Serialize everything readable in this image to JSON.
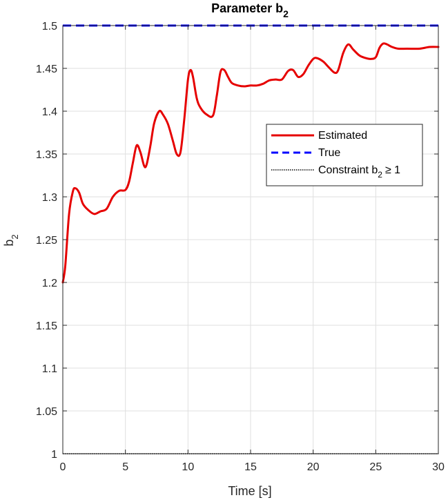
{
  "chart_data": {
    "type": "line",
    "title": "Parameter b",
    "title_subscript": "2",
    "xlabel": "Time [s]",
    "ylabel": "b",
    "ylabel_subscript": "2",
    "xlim": [
      0,
      30
    ],
    "ylim": [
      1,
      1.5
    ],
    "xticks": [
      0,
      5,
      10,
      15,
      20,
      25,
      30
    ],
    "yticks": [
      1,
      1.05,
      1.1,
      1.15,
      1.2,
      1.25,
      1.3,
      1.35,
      1.4,
      1.45,
      1.5
    ],
    "xtick_labels": [
      "0",
      "5",
      "10",
      "15",
      "20",
      "25",
      "30"
    ],
    "ytick_labels": [
      "1",
      "1.05",
      "1.1",
      "1.15",
      "1.2",
      "1.25",
      "1.3",
      "1.35",
      "1.4",
      "1.45",
      "1.5"
    ],
    "grid": true,
    "legend_position": "right",
    "series": [
      {
        "name": "Estimated",
        "color": "#e60000",
        "style": "solid",
        "x": [
          0,
          0.2,
          0.5,
          0.8,
          1.0,
          1.3,
          1.6,
          2.0,
          2.5,
          3.0,
          3.5,
          4.0,
          4.5,
          5.0,
          5.3,
          5.6,
          5.9,
          6.2,
          6.5,
          6.7,
          7.0,
          7.3,
          7.7,
          8.0,
          8.4,
          8.8,
          9.1,
          9.4,
          9.7,
          10.0,
          10.2,
          10.4,
          10.7,
          11.0,
          11.5,
          12.0,
          12.3,
          12.6,
          12.9,
          13.2,
          13.5,
          14.0,
          14.5,
          15.0,
          15.5,
          16.0,
          16.5,
          17.0,
          17.5,
          18.0,
          18.4,
          18.8,
          19.2,
          19.6,
          20.0,
          20.3,
          20.8,
          21.2,
          21.7,
          22.0,
          22.4,
          22.8,
          23.2,
          23.7,
          24.2,
          24.6,
          25.0,
          25.3,
          25.6,
          25.9,
          26.3,
          26.8,
          27.5,
          28.5,
          29.3,
          30.0
        ],
        "values": [
          1.2,
          1.22,
          1.28,
          1.306,
          1.31,
          1.305,
          1.292,
          1.285,
          1.28,
          1.283,
          1.286,
          1.3,
          1.307,
          1.308,
          1.318,
          1.34,
          1.36,
          1.352,
          1.336,
          1.338,
          1.36,
          1.386,
          1.4,
          1.396,
          1.385,
          1.365,
          1.35,
          1.352,
          1.39,
          1.437,
          1.448,
          1.44,
          1.415,
          1.404,
          1.396,
          1.395,
          1.418,
          1.446,
          1.448,
          1.44,
          1.433,
          1.43,
          1.429,
          1.43,
          1.43,
          1.432,
          1.436,
          1.437,
          1.437,
          1.447,
          1.448,
          1.44,
          1.443,
          1.453,
          1.461,
          1.462,
          1.458,
          1.452,
          1.445,
          1.448,
          1.468,
          1.478,
          1.472,
          1.465,
          1.462,
          1.461,
          1.463,
          1.474,
          1.479,
          1.478,
          1.475,
          1.473,
          1.473,
          1.473,
          1.475,
          1.475
        ]
      },
      {
        "name": "True",
        "color": "#0000ff",
        "style": "dashed",
        "x": [
          0,
          30
        ],
        "values": [
          1.5,
          1.5
        ]
      },
      {
        "name": "Constraint b",
        "name_subscript": "2",
        "name_suffix": "≥ 1",
        "color": "#000000",
        "style": "dotted",
        "x": [
          0,
          30
        ],
        "values": [
          1,
          1
        ]
      }
    ]
  }
}
